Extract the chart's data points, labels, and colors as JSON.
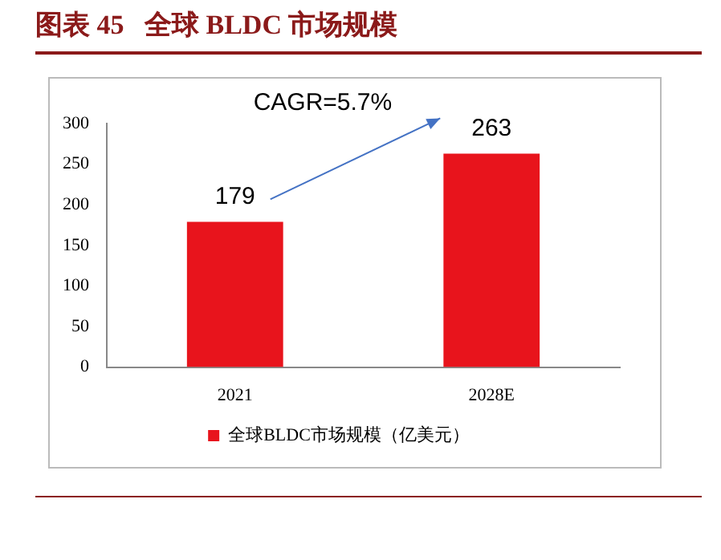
{
  "chart_data": {
    "type": "bar",
    "title": "图表 45   全球 BLDC 市场规模",
    "categories": [
      "2021",
      "2028E"
    ],
    "series": [
      {
        "name": "全球BLDC市场规模（亿美元）",
        "color": "#e8141c",
        "values": [
          179,
          263
        ]
      }
    ],
    "ylim": [
      0,
      300
    ],
    "yticks": [
      0,
      50,
      100,
      150,
      200,
      250,
      300
    ],
    "grid": false,
    "legend": "bottom",
    "data_labels": true,
    "annotations": [
      "CAGR=5.7%"
    ]
  }
}
